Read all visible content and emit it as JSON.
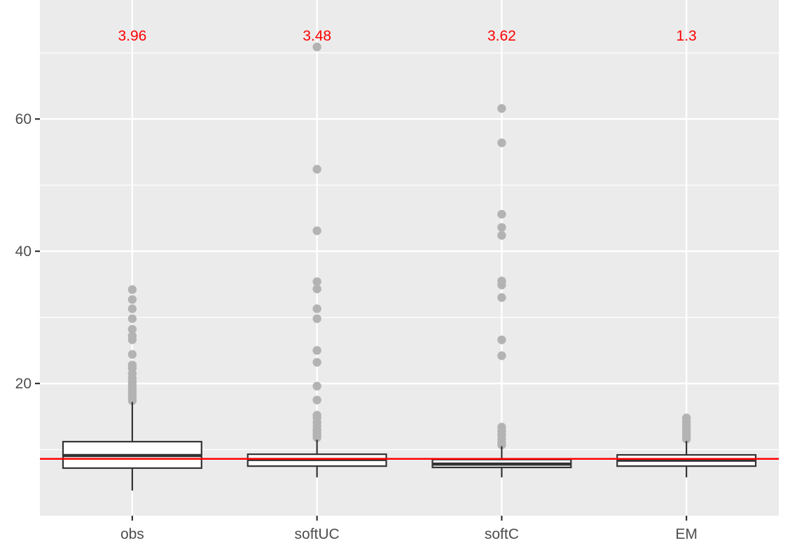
{
  "chart_data": {
    "type": "boxplot",
    "title": "",
    "xlabel": "",
    "ylabel": "",
    "categories": [
      "obs",
      "softUC",
      "softC",
      "EM"
    ],
    "ylim": [
      0,
      78
    ],
    "y_ticks": [
      20,
      40,
      60
    ],
    "grid": true,
    "reference_line": {
      "y": 8.6,
      "color": "#ff0000"
    },
    "annotation_color": "#ff0000",
    "box_fill": "#ffffff",
    "box_stroke": "#333333",
    "outlier_color": "#b3b3b3",
    "panel_background": "#ebebeb",
    "grid_color": "#ffffff",
    "boxes": [
      {
        "category": "obs",
        "label": "3.96",
        "whisker_low": 3.8,
        "q1": 7.2,
        "median": 9.1,
        "q3": 11.2,
        "whisker_high": 17.2,
        "outliers": [
          17.4,
          17.8,
          18.2,
          18.7,
          19.2,
          19.7,
          20.2,
          20.8,
          21.5,
          22.3,
          22.8,
          24.4,
          26.6,
          27.2,
          28.2,
          29.8,
          31.3,
          32.7,
          34.2
        ]
      },
      {
        "category": "softUC",
        "label": "3.48",
        "whisker_low": 5.8,
        "q1": 7.5,
        "median": 8.5,
        "q3": 9.3,
        "whisker_high": 11.5,
        "outliers": [
          11.8,
          12.2,
          12.6,
          13.0,
          13.5,
          14.1,
          14.8,
          15.2,
          17.5,
          19.6,
          23.2,
          25.0,
          29.8,
          31.3,
          34.3,
          35.4,
          43.1,
          52.4,
          70.9
        ]
      },
      {
        "category": "softC",
        "label": "3.62",
        "whisker_low": 5.8,
        "q1": 7.3,
        "median": 7.8,
        "q3": 8.5,
        "whisker_high": 10.5,
        "outliers": [
          10.7,
          11.1,
          11.6,
          12.2,
          12.8,
          13.4,
          24.2,
          26.6,
          33.0,
          34.9,
          35.5,
          42.4,
          43.6,
          45.6,
          56.4,
          61.6
        ]
      },
      {
        "category": "EM",
        "label": "1.3",
        "whisker_low": 5.8,
        "q1": 7.5,
        "median": 8.4,
        "q3": 9.2,
        "whisker_high": 11.3,
        "outliers": [
          11.6,
          12.0,
          12.4,
          12.8,
          13.2,
          13.7,
          14.2,
          14.8
        ]
      }
    ]
  }
}
